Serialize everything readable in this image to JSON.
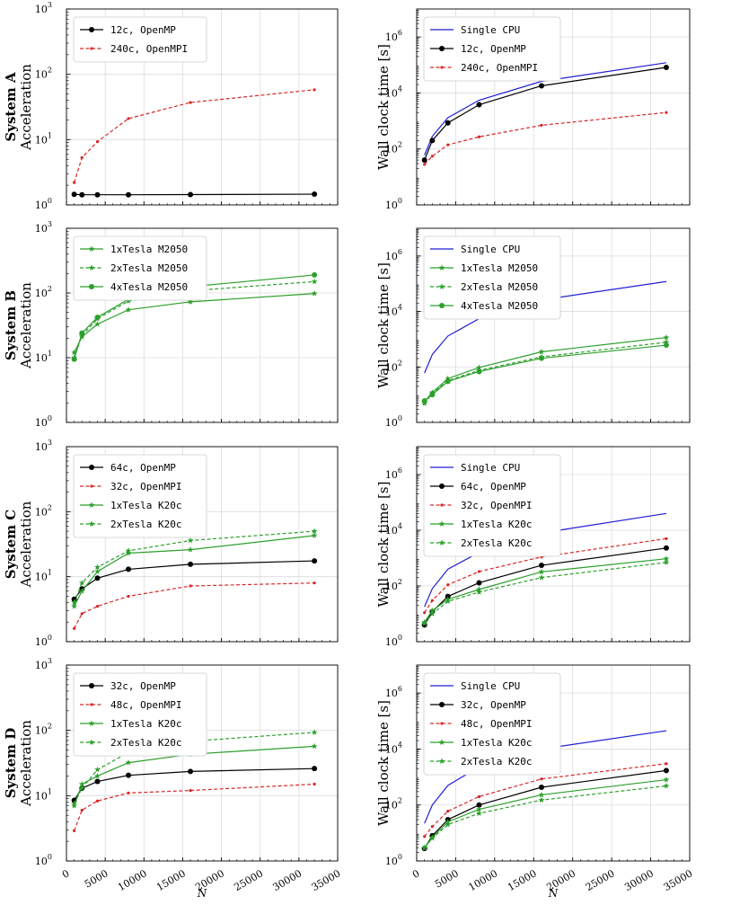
{
  "chart_data": [
    {
      "type": "line",
      "system": "System A",
      "ylabel": "Acceleration",
      "yscale": "log",
      "ylim": [
        1,
        1000
      ],
      "xlim": [
        0,
        35000
      ],
      "xlabel": "N",
      "series": [
        {
          "name": "12c, OpenMP",
          "color": "#000000",
          "dash": "solid",
          "marker": "circle",
          "x": [
            1000,
            2000,
            4000,
            8000,
            16000,
            32000
          ],
          "y": [
            1.45,
            1.43,
            1.43,
            1.43,
            1.44,
            1.46
          ]
        },
        {
          "name": "240c, OpenMPI",
          "color": "#d62728",
          "dash": "dashed",
          "marker": "dot",
          "x": [
            1000,
            2000,
            4000,
            8000,
            16000,
            32000
          ],
          "y": [
            2.2,
            5.3,
            9.3,
            21,
            37,
            58
          ]
        }
      ]
    },
    {
      "type": "line",
      "system": "System A",
      "ylabel": "Wall clock time [s]",
      "yscale": "log",
      "ylim": [
        1,
        10000000
      ],
      "xlim": [
        0,
        35000
      ],
      "xlabel": "N",
      "series": [
        {
          "name": "Single CPU",
          "color": "#1f1fd6",
          "dash": "solid",
          "marker": "none",
          "x": [
            1000,
            2000,
            4000,
            8000,
            16000,
            32000
          ],
          "y": [
            60,
            280,
            1300,
            5500,
            26000,
            120000
          ]
        },
        {
          "name": "12c, OpenMP",
          "color": "#000000",
          "dash": "solid",
          "marker": "circle",
          "x": [
            1000,
            2000,
            4000,
            8000,
            16000,
            32000
          ],
          "y": [
            40,
            200,
            850,
            3800,
            18000,
            82000
          ]
        },
        {
          "name": "240c, OpenMPI",
          "color": "#d62728",
          "dash": "dashed",
          "marker": "dot",
          "x": [
            1000,
            2000,
            4000,
            8000,
            16000,
            32000
          ],
          "y": [
            28,
            55,
            140,
            270,
            700,
            2000
          ]
        }
      ]
    },
    {
      "type": "line",
      "system": "System B",
      "ylabel": "Acceleration",
      "yscale": "log",
      "ylim": [
        1,
        1000
      ],
      "xlim": [
        0,
        35000
      ],
      "xlabel": "N",
      "series": [
        {
          "name": "1xTesla M2050",
          "color": "#2ca02c",
          "dash": "solid",
          "marker": "star",
          "x": [
            1000,
            2000,
            4000,
            8000,
            16000,
            32000
          ],
          "y": [
            12,
            21,
            33,
            55,
            73,
            98
          ]
        },
        {
          "name": "2xTesla M2050",
          "color": "#2ca02c",
          "dash": "dashed",
          "marker": "star",
          "x": [
            1000,
            2000,
            4000,
            8000,
            16000,
            32000
          ],
          "y": [
            10,
            22,
            40,
            75,
            108,
            150
          ]
        },
        {
          "name": "4xTesla M2050",
          "color": "#2ca02c",
          "dash": "solid",
          "marker": "circle",
          "x": [
            1000,
            2000,
            4000,
            8000,
            16000,
            32000
          ],
          "y": [
            9.5,
            24,
            42,
            80,
            125,
            190
          ]
        }
      ]
    },
    {
      "type": "line",
      "system": "System B",
      "ylabel": "Wall clock time [s]",
      "yscale": "log",
      "ylim": [
        1,
        10000000
      ],
      "xlim": [
        0,
        35000
      ],
      "xlabel": "N",
      "series": [
        {
          "name": "Single CPU",
          "color": "#1f1fd6",
          "dash": "solid",
          "marker": "none",
          "x": [
            1000,
            2000,
            4000,
            8000,
            16000,
            32000
          ],
          "y": [
            60,
            280,
            1300,
            5500,
            26000,
            120000
          ]
        },
        {
          "name": "1xTesla M2050",
          "color": "#2ca02c",
          "dash": "solid",
          "marker": "star",
          "x": [
            1000,
            2000,
            4000,
            8000,
            16000,
            32000
          ],
          "y": [
            5.5,
            12,
            38,
            95,
            350,
            1150
          ]
        },
        {
          "name": "2xTesla M2050",
          "color": "#2ca02c",
          "dash": "dashed",
          "marker": "star",
          "x": [
            1000,
            2000,
            4000,
            8000,
            16000,
            32000
          ],
          "y": [
            4.8,
            11,
            32,
            75,
            230,
            780
          ]
        },
        {
          "name": "4xTesla M2050",
          "color": "#2ca02c",
          "dash": "solid",
          "marker": "circle",
          "x": [
            1000,
            2000,
            4000,
            8000,
            16000,
            32000
          ],
          "y": [
            6,
            10,
            30,
            68,
            205,
            610
          ]
        }
      ]
    },
    {
      "type": "line",
      "system": "System C",
      "ylabel": "Acceleration",
      "yscale": "log",
      "ylim": [
        1,
        1000
      ],
      "xlim": [
        0,
        35000
      ],
      "xlabel": "N",
      "series": [
        {
          "name": "64c, OpenMP",
          "color": "#000000",
          "dash": "solid",
          "marker": "circle",
          "x": [
            1000,
            2000,
            4000,
            8000,
            16000,
            32000
          ],
          "y": [
            4.5,
            6.5,
            9.5,
            13,
            15.5,
            17.5
          ]
        },
        {
          "name": "32c, OpenMPI",
          "color": "#d62728",
          "dash": "dashed",
          "marker": "dot",
          "x": [
            1000,
            2000,
            4000,
            8000,
            16000,
            32000
          ],
          "y": [
            1.6,
            2.7,
            3.5,
            5,
            7.2,
            8
          ]
        },
        {
          "name": "1xTesla K20c",
          "color": "#2ca02c",
          "dash": "solid",
          "marker": "star",
          "x": [
            1000,
            2000,
            4000,
            8000,
            16000,
            32000
          ],
          "y": [
            3.5,
            6,
            12,
            23,
            26,
            43
          ]
        },
        {
          "name": "2xTesla K20c",
          "color": "#2ca02c",
          "dash": "dashed",
          "marker": "star",
          "x": [
            1000,
            2000,
            4000,
            8000,
            16000,
            32000
          ],
          "y": [
            4,
            8,
            14,
            25,
            36,
            50
          ]
        }
      ]
    },
    {
      "type": "line",
      "system": "System C",
      "ylabel": "Wall clock time [s]",
      "yscale": "log",
      "ylim": [
        1,
        10000000
      ],
      "xlim": [
        0,
        35000
      ],
      "xlabel": "N",
      "series": [
        {
          "name": "Single CPU",
          "color": "#1f1fd6",
          "dash": "solid",
          "marker": "none",
          "x": [
            1000,
            2000,
            4000,
            8000,
            16000,
            32000
          ],
          "y": [
            18,
            80,
            400,
            1600,
            8000,
            40000
          ]
        },
        {
          "name": "64c, OpenMP",
          "color": "#000000",
          "dash": "solid",
          "marker": "circle",
          "x": [
            1000,
            2000,
            4000,
            8000,
            16000,
            32000
          ],
          "y": [
            4,
            12,
            42,
            130,
            550,
            2300
          ]
        },
        {
          "name": "32c, OpenMPI",
          "color": "#d62728",
          "dash": "dashed",
          "marker": "dot",
          "x": [
            1000,
            2000,
            4000,
            8000,
            16000,
            32000
          ],
          "y": [
            11,
            30,
            110,
            330,
            1100,
            5000
          ]
        },
        {
          "name": "1xTesla K20c",
          "color": "#2ca02c",
          "dash": "solid",
          "marker": "star",
          "x": [
            1000,
            2000,
            4000,
            8000,
            16000,
            32000
          ],
          "y": [
            5,
            13,
            33,
            75,
            320,
            950
          ]
        },
        {
          "name": "2xTesla K20c",
          "color": "#2ca02c",
          "dash": "dashed",
          "marker": "star",
          "x": [
            1000,
            2000,
            4000,
            8000,
            16000,
            32000
          ],
          "y": [
            4.5,
            10,
            28,
            60,
            200,
            700
          ]
        }
      ]
    },
    {
      "type": "line",
      "system": "System D",
      "ylabel": "Acceleration",
      "yscale": "log",
      "ylim": [
        1,
        1000
      ],
      "xlim": [
        0,
        35000
      ],
      "xlabel": "N",
      "series": [
        {
          "name": "32c, OpenMP",
          "color": "#000000",
          "dash": "solid",
          "marker": "circle",
          "x": [
            1000,
            2000,
            4000,
            8000,
            16000,
            32000
          ],
          "y": [
            8.5,
            13,
            16.5,
            20.5,
            23.5,
            26
          ]
        },
        {
          "name": "48c, OpenMPI",
          "color": "#d62728",
          "dash": "dashed",
          "marker": "dot",
          "x": [
            1000,
            2000,
            4000,
            8000,
            16000,
            32000
          ],
          "y": [
            2.9,
            6,
            8.3,
            11,
            12,
            15
          ]
        },
        {
          "name": "1xTesla K20c",
          "color": "#2ca02c",
          "dash": "solid",
          "marker": "star",
          "x": [
            1000,
            2000,
            4000,
            8000,
            16000,
            32000
          ],
          "y": [
            7,
            15,
            20,
            32,
            43,
            57
          ]
        },
        {
          "name": "2xTesla K20c",
          "color": "#2ca02c",
          "dash": "dashed",
          "marker": "star",
          "x": [
            1000,
            2000,
            4000,
            8000,
            16000,
            32000
          ],
          "y": [
            7.5,
            13,
            25,
            46,
            68,
            93
          ]
        }
      ]
    },
    {
      "type": "line",
      "system": "System D",
      "ylabel": "Wall clock time [s]",
      "yscale": "log",
      "ylim": [
        1,
        10000000
      ],
      "xlim": [
        0,
        35000
      ],
      "xlabel": "N",
      "series": [
        {
          "name": "Single CPU",
          "color": "#1f1fd6",
          "dash": "solid",
          "marker": "none",
          "x": [
            1000,
            2000,
            4000,
            8000,
            16000,
            32000
          ],
          "y": [
            22,
            100,
            500,
            2300,
            10000,
            45000
          ]
        },
        {
          "name": "32c, OpenMP",
          "color": "#000000",
          "dash": "solid",
          "marker": "circle",
          "x": [
            1000,
            2000,
            4000,
            8000,
            16000,
            32000
          ],
          "y": [
            2.8,
            8,
            30,
            100,
            430,
            1700
          ]
        },
        {
          "name": "48c, OpenMPI",
          "color": "#d62728",
          "dash": "dashed",
          "marker": "dot",
          "x": [
            1000,
            2000,
            4000,
            8000,
            16000,
            32000
          ],
          "y": [
            7.5,
            17,
            60,
            200,
            850,
            3000
          ]
        },
        {
          "name": "1xTesla K20c",
          "color": "#2ca02c",
          "dash": "solid",
          "marker": "star",
          "x": [
            1000,
            2000,
            4000,
            8000,
            16000,
            32000
          ],
          "y": [
            3,
            7,
            25,
            70,
            230,
            800
          ]
        },
        {
          "name": "2xTesla K20c",
          "color": "#2ca02c",
          "dash": "dashed",
          "marker": "star",
          "x": [
            1000,
            2000,
            4000,
            8000,
            16000,
            32000
          ],
          "y": [
            2.9,
            6.5,
            20,
            50,
            150,
            480
          ]
        }
      ]
    }
  ],
  "x_ticks": [
    "0",
    "5000",
    "10000",
    "15000",
    "20000",
    "25000",
    "30000",
    "35000"
  ],
  "x_tick_values": [
    0,
    5000,
    10000,
    15000,
    20000,
    25000,
    30000,
    35000
  ],
  "accel_ticks": [
    {
      "base": "10",
      "exp": "0",
      "value": 1
    },
    {
      "base": "10",
      "exp": "1",
      "value": 10
    },
    {
      "base": "10",
      "exp": "2",
      "value": 100
    },
    {
      "base": "10",
      "exp": "3",
      "value": 1000
    }
  ],
  "time_ticks": [
    {
      "base": "10",
      "exp": "0",
      "value": 1
    },
    {
      "base": "10",
      "exp": "2",
      "value": 100
    },
    {
      "base": "10",
      "exp": "4",
      "value": 10000
    },
    {
      "base": "10",
      "exp": "6",
      "value": 1000000
    }
  ]
}
